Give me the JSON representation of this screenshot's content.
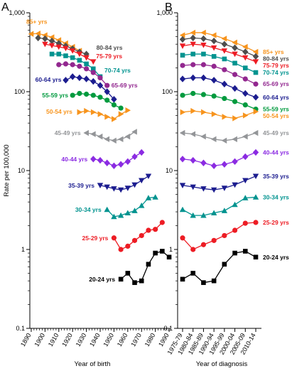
{
  "chart_data": [
    {
      "panel": "A",
      "type": "line",
      "xlabel": "Year of birth",
      "ylabel": "Rate per 100,000",
      "yscale": "log",
      "ylim": [
        0.1,
        1000
      ],
      "xlim": [
        1889,
        1991
      ],
      "x_ticks": [
        1890,
        1900,
        1910,
        1920,
        1930,
        1940,
        1950,
        1960,
        1970,
        1980,
        1990
      ],
      "y_ticks": [
        {
          "value": 0.1,
          "label": "0.1"
        },
        {
          "value": 1,
          "label": "1"
        },
        {
          "value": 10,
          "label": "10"
        },
        {
          "value": 100,
          "label": "100"
        },
        {
          "value": 1000,
          "label": "1,000"
        }
      ],
      "legend": "inline labels",
      "series": [
        {
          "name": "85+ yrs",
          "color": "#F7941D",
          "marker": "triangle-left",
          "x": [
            1890,
            1895,
            1900,
            1905,
            1910,
            1915,
            1920,
            1925
          ],
          "y": [
            540,
            545,
            520,
            490,
            450,
            410,
            370,
            330
          ]
        },
        {
          "name": "80-84 yrs",
          "color": "#4D4D4D",
          "marker": "diamond",
          "x": [
            1895,
            1900,
            1905,
            1910,
            1915,
            1920,
            1925,
            1930
          ],
          "y": [
            480,
            470,
            440,
            410,
            380,
            350,
            320,
            300
          ]
        },
        {
          "name": "75-79 yrs",
          "color": "#ED1C24",
          "marker": "triangle-down",
          "x": [
            1900,
            1905,
            1910,
            1915,
            1920,
            1925,
            1930,
            1935
          ],
          "y": [
            400,
            385,
            370,
            355,
            330,
            300,
            270,
            240
          ]
        },
        {
          "name": "70-74 yrs",
          "color": "#00938F",
          "marker": "square",
          "x": [
            1905,
            1910,
            1915,
            1920,
            1925,
            1930,
            1935,
            1940
          ],
          "y": [
            300,
            300,
            285,
            270,
            250,
            225,
            195,
            155
          ]
        },
        {
          "name": "65-69 yrs",
          "color": "#92278F",
          "marker": "circle",
          "x": [
            1910,
            1915,
            1920,
            1925,
            1930,
            1935,
            1940,
            1945
          ],
          "y": [
            220,
            225,
            220,
            210,
            195,
            175,
            150,
            120
          ]
        },
        {
          "name": "60-64 yrs",
          "color": "#1B1C8F",
          "marker": "diamond",
          "x": [
            1915,
            1920,
            1925,
            1930,
            1935,
            1940,
            1945,
            1950
          ],
          "y": [
            140,
            155,
            150,
            145,
            135,
            120,
            100,
            80
          ]
        },
        {
          "name": "55-59 yrs",
          "color": "#009A3E",
          "marker": "circle",
          "x": [
            1920,
            1925,
            1930,
            1935,
            1940,
            1945,
            1950,
            1955
          ],
          "y": [
            90,
            95,
            93,
            90,
            85,
            78,
            68,
            62
          ]
        },
        {
          "name": "50-54 yrs",
          "color": "#F7941D",
          "marker": "triangle-right",
          "x": [
            1925,
            1930,
            1935,
            1940,
            1945,
            1950,
            1955,
            1960
          ],
          "y": [
            55,
            57,
            55,
            52,
            48,
            45,
            52,
            58
          ]
        },
        {
          "name": "45-49 yrs",
          "color": "#939598",
          "marker": "triangle-left",
          "x": [
            1930,
            1935,
            1940,
            1945,
            1950,
            1955,
            1960,
            1965
          ],
          "y": [
            30,
            29,
            27,
            25,
            24,
            25,
            27,
            31
          ]
        },
        {
          "name": "40-44 yrs",
          "color": "#8B2BE2",
          "marker": "diamond",
          "x": [
            1935,
            1940,
            1945,
            1950,
            1955,
            1960,
            1965,
            1970
          ],
          "y": [
            14,
            13.5,
            12.5,
            11.5,
            12,
            13,
            15,
            17
          ]
        },
        {
          "name": "35-39 yrs",
          "color": "#1B1C8F",
          "marker": "triangle-down",
          "x": [
            1940,
            1945,
            1950,
            1955,
            1960,
            1965,
            1970,
            1975
          ],
          "y": [
            6.5,
            6.2,
            5.9,
            5.7,
            6.0,
            6.6,
            7.5,
            8.5
          ]
        },
        {
          "name": "30-34 yrs",
          "color": "#00938F",
          "marker": "triangle-up",
          "x": [
            1945,
            1950,
            1955,
            1960,
            1965,
            1970,
            1975,
            1980
          ],
          "y": [
            3.2,
            2.6,
            2.7,
            2.9,
            3.1,
            3.6,
            4.5,
            4.6
          ]
        },
        {
          "name": "25-29 yrs",
          "color": "#ED1C24",
          "marker": "circle",
          "x": [
            1950,
            1955,
            1960,
            1965,
            1970,
            1975,
            1980,
            1985
          ],
          "y": [
            1.4,
            1.0,
            1.1,
            1.3,
            1.5,
            1.75,
            1.8,
            2.2
          ]
        },
        {
          "name": "20-24 yrs",
          "color": "#000000",
          "marker": "square",
          "x": [
            1955,
            1960,
            1965,
            1970,
            1975,
            1980,
            1985,
            1990
          ],
          "y": [
            0.42,
            0.5,
            0.38,
            0.4,
            0.65,
            0.9,
            0.95,
            0.8
          ]
        }
      ]
    },
    {
      "panel": "B",
      "type": "line",
      "xlabel": "Year of diagnosis",
      "ylabel": "",
      "yscale": "log",
      "ylim": [
        0.1,
        1000
      ],
      "categories": [
        "1975-79",
        "1980-84",
        "1985-89",
        "1990-94",
        "1995-99",
        "2000-04",
        "2005-09",
        "2010-14"
      ],
      "y_ticks": [
        {
          "value": 0.1,
          "label": "0.1"
        },
        {
          "value": 1,
          "label": "1"
        },
        {
          "value": 10,
          "label": "10"
        },
        {
          "value": 100,
          "label": "100"
        },
        {
          "value": 1000,
          "label": "1,000"
        }
      ],
      "legend": "inline labels right",
      "series": [
        {
          "name": "85+ yrs",
          "color": "#F7941D",
          "marker": "triangle-left",
          "y": [
            520,
            560,
            560,
            520,
            470,
            420,
            370,
            320
          ]
        },
        {
          "name": "80-84 yrs",
          "color": "#4D4D4D",
          "marker": "diamond",
          "y": [
            460,
            480,
            470,
            440,
            400,
            360,
            320,
            280
          ]
        },
        {
          "name": "75-79 yrs",
          "color": "#ED1C24",
          "marker": "triangle-down",
          "y": [
            380,
            400,
            390,
            360,
            330,
            300,
            270,
            240
          ]
        },
        {
          "name": "70-74 yrs",
          "color": "#00938F",
          "marker": "square",
          "y": [
            290,
            300,
            300,
            280,
            260,
            230,
            200,
            175
          ]
        },
        {
          "name": "65-69 yrs",
          "color": "#92278F",
          "marker": "circle",
          "y": [
            215,
            220,
            220,
            210,
            190,
            165,
            145,
            125
          ]
        },
        {
          "name": "60-64 yrs",
          "color": "#1B1C8F",
          "marker": "diamond",
          "y": [
            145,
            150,
            150,
            140,
            125,
            110,
            95,
            85
          ]
        },
        {
          "name": "55-59 yrs",
          "color": "#009A3E",
          "marker": "circle",
          "y": [
            90,
            95,
            92,
            88,
            82,
            75,
            68,
            60
          ]
        },
        {
          "name": "50-54 yrs",
          "color": "#F7941D",
          "marker": "triangle-right",
          "y": [
            55,
            57,
            55,
            52,
            48,
            46,
            50,
            56
          ]
        },
        {
          "name": "45-49 yrs",
          "color": "#939598",
          "marker": "triangle-left",
          "y": [
            30,
            29,
            27,
            25,
            24,
            25,
            27,
            30
          ]
        },
        {
          "name": "40-44 yrs",
          "color": "#8B2BE2",
          "marker": "diamond",
          "y": [
            14,
            13.5,
            12.5,
            11.5,
            12,
            13,
            15,
            17
          ]
        },
        {
          "name": "35-39 yrs",
          "color": "#1B1C8F",
          "marker": "triangle-down",
          "y": [
            6.5,
            6.2,
            5.9,
            5.7,
            6.0,
            6.6,
            7.5,
            8.5
          ]
        },
        {
          "name": "30-34 yrs",
          "color": "#00938F",
          "marker": "triangle-up",
          "y": [
            3.2,
            2.7,
            2.7,
            2.9,
            3.1,
            3.7,
            4.5,
            4.6
          ]
        },
        {
          "name": "25-29 yrs",
          "color": "#ED1C24",
          "marker": "circle",
          "y": [
            1.4,
            1.0,
            1.15,
            1.3,
            1.5,
            1.75,
            2.15,
            2.2
          ]
        },
        {
          "name": "20-24 yrs",
          "color": "#000000",
          "marker": "square",
          "y": [
            0.42,
            0.5,
            0.38,
            0.4,
            0.65,
            0.9,
            0.95,
            0.8
          ]
        }
      ]
    }
  ]
}
